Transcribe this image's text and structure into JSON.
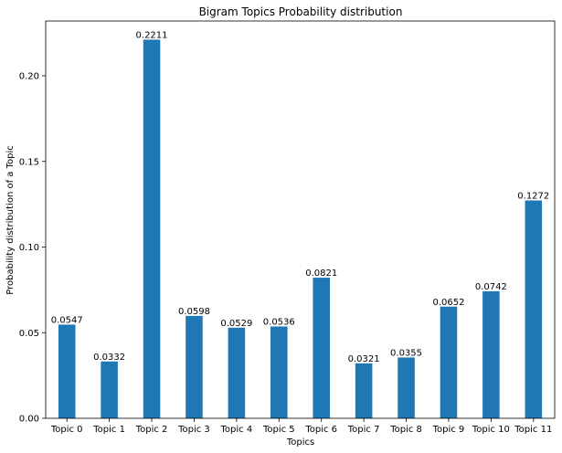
{
  "chart_data": {
    "type": "bar",
    "title": "Bigram Topics Probability distribution",
    "xlabel": "Topics",
    "ylabel": "Probability distribution of a Topic",
    "categories": [
      "Topic 0",
      "Topic 1",
      "Topic 2",
      "Topic 3",
      "Topic 4",
      "Topic 5",
      "Topic 6",
      "Topic 7",
      "Topic 8",
      "Topic 9",
      "Topic 10",
      "Topic 11"
    ],
    "values": [
      0.0547,
      0.0332,
      0.2211,
      0.0598,
      0.0529,
      0.0536,
      0.0821,
      0.0321,
      0.0355,
      0.0652,
      0.0742,
      0.1272
    ],
    "data_labels": [
      "0.0547",
      "0.0332",
      "0.2211",
      "0.0598",
      "0.0529",
      "0.0536",
      "0.0821",
      "0.0321",
      "0.0355",
      "0.0652",
      "0.0742",
      "0.1272"
    ],
    "ylim": [
      0,
      0.232
    ],
    "yticks": [
      0,
      0.05,
      0.1,
      0.15,
      0.2
    ],
    "ytick_labels": [
      "0.00",
      "0.05",
      "0.10",
      "0.15",
      "0.20"
    ],
    "bar_color": "#1f77b4",
    "grid": false,
    "legend": "none"
  }
}
